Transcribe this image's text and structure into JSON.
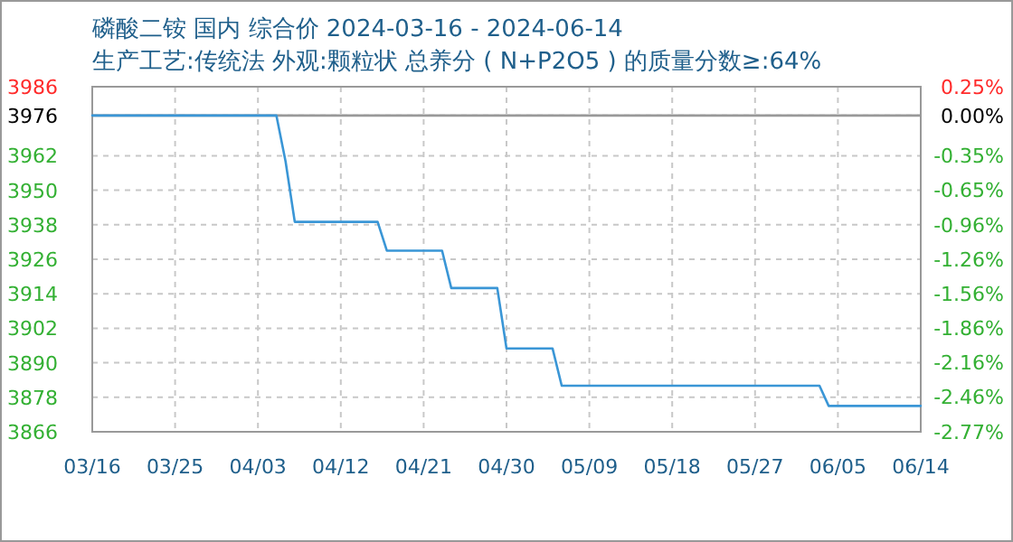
{
  "chart_data": {
    "type": "line",
    "title": "磷酸二铵 国内 综合价 2024-03-16 - 2024-06-14",
    "subtitle": "生产工艺:传统法 外观:颗粒状 总养分 ( N+P2O5 ) 的质量分数≥:64%",
    "x": [
      "2024-03-16",
      "2024-04-05",
      "2024-04-06",
      "2024-04-07",
      "2024-04-16",
      "2024-04-17",
      "2024-04-23",
      "2024-04-24",
      "2024-04-29",
      "2024-04-30",
      "2024-05-05",
      "2024-05-06",
      "2024-06-03",
      "2024-06-04",
      "2024-06-14"
    ],
    "series": [
      {
        "color": "#3a96d6",
        "values": [
          3976,
          3976,
          3960,
          3939,
          3939,
          3929,
          3929,
          3916,
          3916,
          3895,
          3895,
          3882,
          3882,
          3875,
          3875
        ]
      }
    ],
    "xlim": [
      "2024-03-16",
      "2024-06-14"
    ],
    "xticks": [
      {
        "value": "2024-03-16",
        "label": "03/16"
      },
      {
        "value": "2024-03-25",
        "label": "03/25"
      },
      {
        "value": "2024-04-03",
        "label": "04/03"
      },
      {
        "value": "2024-04-12",
        "label": "04/12"
      },
      {
        "value": "2024-04-21",
        "label": "04/21"
      },
      {
        "value": "2024-04-30",
        "label": "04/30"
      },
      {
        "value": "2024-05-09",
        "label": "05/09"
      },
      {
        "value": "2024-05-18",
        "label": "05/18"
      },
      {
        "value": "2024-05-27",
        "label": "05/27"
      },
      {
        "value": "2024-06-05",
        "label": "06/05"
      },
      {
        "value": "2024-06-14",
        "label": "06/14"
      }
    ],
    "ylim": [
      3866,
      3986
    ],
    "yticks": [
      3866,
      3878,
      3890,
      3902,
      3914,
      3926,
      3938,
      3950,
      3962,
      3976,
      3986
    ],
    "y2lim": [
      -2.77,
      0.25
    ],
    "y2ticks": [
      {
        "value": -2.77,
        "label": "-2.77%"
      },
      {
        "value": -2.46,
        "label": "-2.46%"
      },
      {
        "value": -2.16,
        "label": "-2.16%"
      },
      {
        "value": -1.86,
        "label": "-1.86%"
      },
      {
        "value": -1.56,
        "label": "-1.56%"
      },
      {
        "value": -1.26,
        "label": "-1.26%"
      },
      {
        "value": -0.96,
        "label": "-0.96%"
      },
      {
        "value": -0.65,
        "label": "-0.65%"
      },
      {
        "value": -0.35,
        "label": "-0.35%"
      },
      {
        "value": 0,
        "label": "0.00%"
      },
      {
        "value": 0.25,
        "label": "0.25%"
      }
    ],
    "ref_lines": [
      {
        "axis": "y",
        "value": 3976,
        "color": "#999999"
      }
    ],
    "grid": true,
    "line_style": "solid",
    "marker": "none"
  }
}
